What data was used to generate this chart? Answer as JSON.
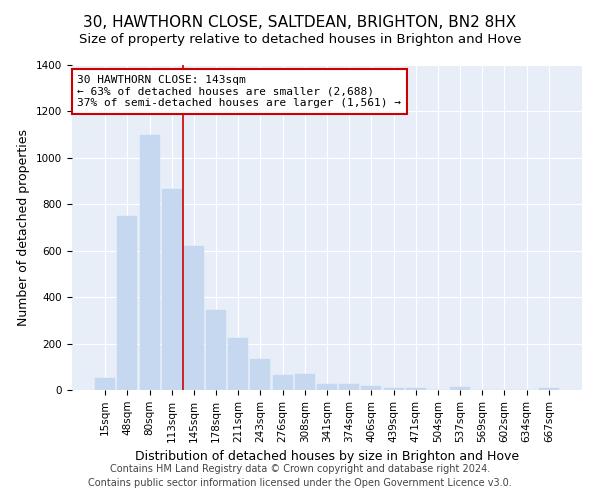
{
  "title": "30, HAWTHORN CLOSE, SALTDEAN, BRIGHTON, BN2 8HX",
  "subtitle": "Size of property relative to detached houses in Brighton and Hove",
  "xlabel": "Distribution of detached houses by size in Brighton and Hove",
  "ylabel": "Number of detached properties",
  "footer_line1": "Contains HM Land Registry data © Crown copyright and database right 2024.",
  "footer_line2": "Contains public sector information licensed under the Open Government Licence v3.0.",
  "bar_labels": [
    "15sqm",
    "48sqm",
    "80sqm",
    "113sqm",
    "145sqm",
    "178sqm",
    "211sqm",
    "243sqm",
    "276sqm",
    "308sqm",
    "341sqm",
    "374sqm",
    "406sqm",
    "439sqm",
    "471sqm",
    "504sqm",
    "537sqm",
    "569sqm",
    "602sqm",
    "634sqm",
    "667sqm"
  ],
  "bar_values": [
    50,
    750,
    1100,
    865,
    620,
    345,
    225,
    135,
    65,
    70,
    28,
    28,
    18,
    10,
    10,
    0,
    12,
    0,
    0,
    0,
    10
  ],
  "bar_color": "#c5d8f0",
  "bar_edgecolor": "#c5d8f0",
  "vline_color": "#cc0000",
  "vline_index": 4,
  "annotation_text": "30 HAWTHORN CLOSE: 143sqm\n← 63% of detached houses are smaller (2,688)\n37% of semi-detached houses are larger (1,561) →",
  "annotation_box_facecolor": "white",
  "annotation_box_edgecolor": "#cc0000",
  "ylim": [
    0,
    1400
  ],
  "yticks": [
    0,
    200,
    400,
    600,
    800,
    1000,
    1200,
    1400
  ],
  "fig_background": "white",
  "plot_background": "#e8eef8",
  "title_fontsize": 11,
  "subtitle_fontsize": 9.5,
  "ylabel_fontsize": 9,
  "xlabel_fontsize": 9,
  "annotation_fontsize": 8,
  "tick_fontsize": 7.5,
  "footer_fontsize": 7
}
